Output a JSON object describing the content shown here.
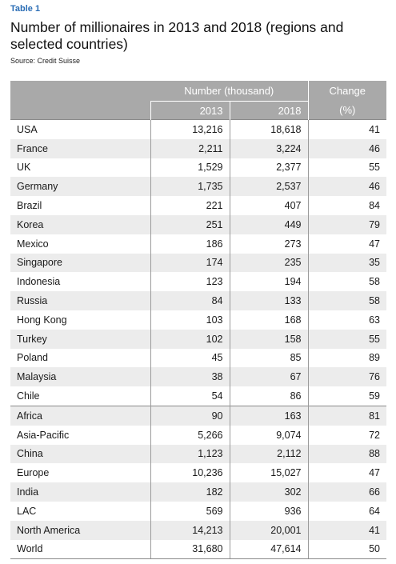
{
  "table_label": "Table 1",
  "title": "Number of millionaires in 2013 and 2018 (regions and selected countries)",
  "source": "Source: Credit Suisse",
  "header": {
    "number_group": "Number (thousand)",
    "change_label": "Change",
    "year_2013": "2013",
    "year_2018": "2018",
    "change_unit": "(%)"
  },
  "countries": [
    {
      "name": "USA",
      "y2013": "13,216",
      "y2018": "18,618",
      "change": "41"
    },
    {
      "name": "France",
      "y2013": "2,211",
      "y2018": "3,224",
      "change": "46"
    },
    {
      "name": "UK",
      "y2013": "1,529",
      "y2018": "2,377",
      "change": "55"
    },
    {
      "name": "Germany",
      "y2013": "1,735",
      "y2018": "2,537",
      "change": "46"
    },
    {
      "name": "Brazil",
      "y2013": "221",
      "y2018": "407",
      "change": "84"
    },
    {
      "name": "Korea",
      "y2013": "251",
      "y2018": "449",
      "change": "79"
    },
    {
      "name": "Mexico",
      "y2013": "186",
      "y2018": "273",
      "change": "47"
    },
    {
      "name": "Singapore",
      "y2013": "174",
      "y2018": "235",
      "change": "35"
    },
    {
      "name": "Indonesia",
      "y2013": "123",
      "y2018": "194",
      "change": "58"
    },
    {
      "name": "Russia",
      "y2013": "84",
      "y2018": "133",
      "change": "58"
    },
    {
      "name": "Hong Kong",
      "y2013": "103",
      "y2018": "168",
      "change": "63"
    },
    {
      "name": "Turkey",
      "y2013": "102",
      "y2018": "158",
      "change": "55"
    },
    {
      "name": "Poland",
      "y2013": "45",
      "y2018": "85",
      "change": "89"
    },
    {
      "name": "Malaysia",
      "y2013": "38",
      "y2018": "67",
      "change": "76"
    },
    {
      "name": "Chile",
      "y2013": "54",
      "y2018": "86",
      "change": "59"
    }
  ],
  "regions": [
    {
      "name": "Africa",
      "y2013": "90",
      "y2018": "163",
      "change": "81"
    },
    {
      "name": "Asia-Pacific",
      "y2013": "5,266",
      "y2018": "9,074",
      "change": "72"
    },
    {
      "name": "China",
      "y2013": "1,123",
      "y2018": "2,112",
      "change": "88"
    },
    {
      "name": "Europe",
      "y2013": "10,236",
      "y2018": "15,027",
      "change": "47"
    },
    {
      "name": "India",
      "y2013": "182",
      "y2018": "302",
      "change": "66"
    },
    {
      "name": "LAC",
      "y2013": "569",
      "y2018": "936",
      "change": "64"
    },
    {
      "name": "North America",
      "y2013": "14,213",
      "y2018": "20,001",
      "change": "41"
    },
    {
      "name": "World",
      "y2013": "31,680",
      "y2018": "47,614",
      "change": "50"
    }
  ],
  "colors": {
    "label_blue": "#2a6db5",
    "header_gray": "#a9a9a9",
    "stripe_gray": "#ececec"
  }
}
